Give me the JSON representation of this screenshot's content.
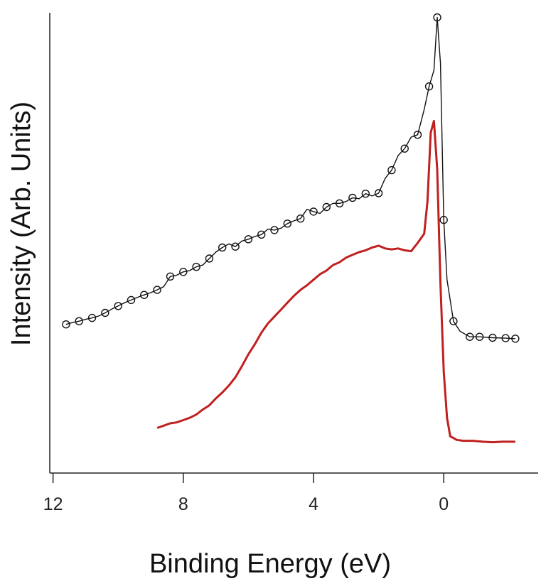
{
  "chart_data": {
    "type": "line",
    "title": "",
    "xlabel": "Binding Energy (eV)",
    "ylabel": "Intensity (Arb. Units)",
    "x_reversed": true,
    "xlim": [
      12.1,
      -2.9
    ],
    "ylim": [
      0,
      1.0
    ],
    "x_ticks": [
      12,
      8,
      4,
      0
    ],
    "x_tick_labels": [
      "12",
      "8",
      "4",
      "0"
    ],
    "y_ticks_shown": false,
    "grid": false,
    "legend": "none",
    "series": [
      {
        "color": "#111111",
        "marker": "circle",
        "x": [
          11.6,
          11.4,
          11.2,
          11.0,
          10.8,
          10.6,
          10.4,
          10.2,
          10.0,
          9.8,
          9.6,
          9.4,
          9.2,
          9.0,
          8.8,
          8.6,
          8.4,
          8.2,
          8.0,
          7.8,
          7.6,
          7.4,
          7.2,
          7.0,
          6.8,
          6.6,
          6.4,
          6.2,
          6.0,
          5.8,
          5.6,
          5.4,
          5.2,
          5.0,
          4.8,
          4.6,
          4.4,
          4.2,
          4.0,
          3.8,
          3.6,
          3.4,
          3.2,
          3.0,
          2.8,
          2.6,
          2.4,
          2.2,
          2.0,
          1.8,
          1.6,
          1.4,
          1.2,
          1.0,
          0.8,
          0.6,
          0.45,
          0.3,
          0.2,
          0.1,
          0.0,
          -0.1,
          -0.3,
          -0.5,
          -0.8,
          -1.1,
          -1.5,
          -1.9,
          -2.2
        ],
        "y": [
          0.323,
          0.327,
          0.33,
          0.334,
          0.337,
          0.341,
          0.348,
          0.356,
          0.363,
          0.37,
          0.376,
          0.382,
          0.387,
          0.392,
          0.398,
          0.405,
          0.427,
          0.43,
          0.437,
          0.44,
          0.448,
          0.452,
          0.466,
          0.48,
          0.49,
          0.498,
          0.492,
          0.504,
          0.508,
          0.514,
          0.518,
          0.53,
          0.528,
          0.532,
          0.542,
          0.548,
          0.553,
          0.573,
          0.568,
          0.564,
          0.578,
          0.586,
          0.586,
          0.59,
          0.598,
          0.596,
          0.607,
          0.602,
          0.608,
          0.64,
          0.658,
          0.69,
          0.705,
          0.73,
          0.735,
          0.79,
          0.84,
          0.875,
          0.99,
          0.89,
          0.55,
          0.42,
          0.33,
          0.308,
          0.296,
          0.296,
          0.294,
          0.293,
          0.292
        ]
      },
      {
        "color": "#c0201f",
        "marker": "none",
        "x": [
          8.8,
          8.6,
          8.4,
          8.2,
          8.0,
          7.8,
          7.6,
          7.4,
          7.2,
          7.0,
          6.8,
          6.6,
          6.4,
          6.2,
          6.0,
          5.8,
          5.6,
          5.4,
          5.2,
          5.0,
          4.8,
          4.6,
          4.4,
          4.2,
          4.0,
          3.8,
          3.6,
          3.4,
          3.2,
          3.0,
          2.8,
          2.6,
          2.4,
          2.2,
          2.0,
          1.8,
          1.6,
          1.4,
          1.2,
          1.0,
          0.8,
          0.6,
          0.5,
          0.4,
          0.3,
          0.2,
          0.1,
          0.0,
          -0.1,
          -0.2,
          -0.4,
          -0.6,
          -0.9,
          -1.2,
          -1.5,
          -1.8,
          -2.2
        ],
        "y": [
          0.098,
          0.103,
          0.108,
          0.11,
          0.115,
          0.12,
          0.127,
          0.138,
          0.147,
          0.162,
          0.175,
          0.19,
          0.208,
          0.232,
          0.258,
          0.28,
          0.305,
          0.325,
          0.34,
          0.355,
          0.37,
          0.385,
          0.398,
          0.408,
          0.42,
          0.432,
          0.44,
          0.452,
          0.458,
          0.468,
          0.474,
          0.48,
          0.484,
          0.49,
          0.494,
          0.488,
          0.486,
          0.488,
          0.484,
          0.482,
          0.5,
          0.52,
          0.59,
          0.74,
          0.765,
          0.66,
          0.41,
          0.22,
          0.12,
          0.08,
          0.072,
          0.07,
          0.07,
          0.068,
          0.067,
          0.068,
          0.068
        ]
      }
    ]
  }
}
